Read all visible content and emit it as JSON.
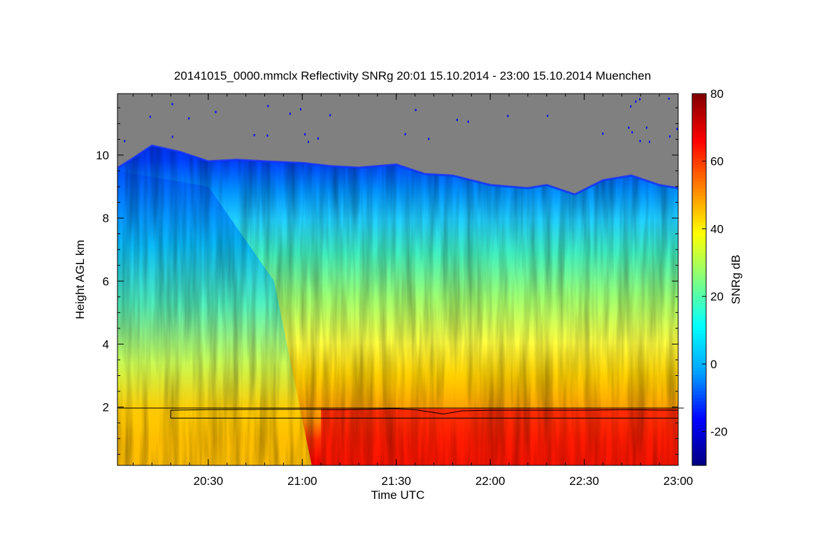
{
  "chart_data": {
    "type": "heatmap",
    "title": "20141015_0000.mmclx Reflectivity SNRg   20:01 15.10.2014 - 23:00 15.10.2014 Muenchen",
    "xlabel": "Time UTC",
    "ylabel": "Height AGL km",
    "colorbar_label": "SNRg dB",
    "x_range_hours": [
      20.0167,
      23.0
    ],
    "y_range_km": [
      0.15,
      11.95
    ],
    "x_ticks": [
      {
        "label": "20:30",
        "value": 20.5
      },
      {
        "label": "21:00",
        "value": 21.0
      },
      {
        "label": "21:30",
        "value": 21.5
      },
      {
        "label": "22:00",
        "value": 22.0
      },
      {
        "label": "22:30",
        "value": 22.5
      },
      {
        "label": "23:00",
        "value": 23.0
      }
    ],
    "y_ticks": [
      {
        "label": "2",
        "value": 2
      },
      {
        "label": "4",
        "value": 4
      },
      {
        "label": "6",
        "value": 6
      },
      {
        "label": "8",
        "value": 8
      },
      {
        "label": "10",
        "value": 10
      }
    ],
    "colorbar_range": [
      -30,
      80
    ],
    "colorbar_ticks": [
      {
        "label": "-20",
        "value": -20
      },
      {
        "label": "0",
        "value": 0
      },
      {
        "label": "20",
        "value": 20
      },
      {
        "label": "40",
        "value": 40
      },
      {
        "label": "60",
        "value": 60
      },
      {
        "label": "80",
        "value": 80
      }
    ],
    "colormap": [
      "#000080",
      "#0000ff",
      "#00a0ff",
      "#00ffff",
      "#80ff80",
      "#ffff00",
      "#ff8000",
      "#ff0000",
      "#800000"
    ],
    "no_signal_color": "#808080",
    "echo_top_km": [
      [
        20.02,
        9.6
      ],
      [
        20.1,
        9.9
      ],
      [
        20.2,
        10.3
      ],
      [
        20.35,
        10.1
      ],
      [
        20.5,
        9.8
      ],
      [
        20.65,
        9.85
      ],
      [
        20.8,
        9.8
      ],
      [
        21.0,
        9.75
      ],
      [
        21.15,
        9.65
      ],
      [
        21.3,
        9.6
      ],
      [
        21.5,
        9.7
      ],
      [
        21.65,
        9.4
      ],
      [
        21.8,
        9.35
      ],
      [
        22.0,
        9.05
      ],
      [
        22.2,
        8.95
      ],
      [
        22.3,
        9.05
      ],
      [
        22.45,
        8.75
      ],
      [
        22.6,
        9.2
      ],
      [
        22.75,
        9.35
      ],
      [
        22.9,
        9.05
      ],
      [
        23.0,
        8.95
      ]
    ],
    "rain_onset_hours": 21.1,
    "melting_layer_km": [
      [
        20.3,
        1.65
      ],
      [
        20.3,
        1.9
      ],
      [
        20.5,
        1.92
      ],
      [
        21.0,
        1.93
      ],
      [
        21.2,
        1.92
      ],
      [
        21.5,
        1.95
      ],
      [
        21.6,
        1.92
      ],
      [
        21.75,
        1.78
      ],
      [
        21.85,
        1.88
      ],
      [
        22.0,
        1.9
      ],
      [
        22.5,
        1.9
      ],
      [
        22.7,
        1.92
      ],
      [
        23.0,
        1.9
      ]
    ],
    "reference_line_km": 1.65,
    "horizon_line_km": 1.97
  }
}
